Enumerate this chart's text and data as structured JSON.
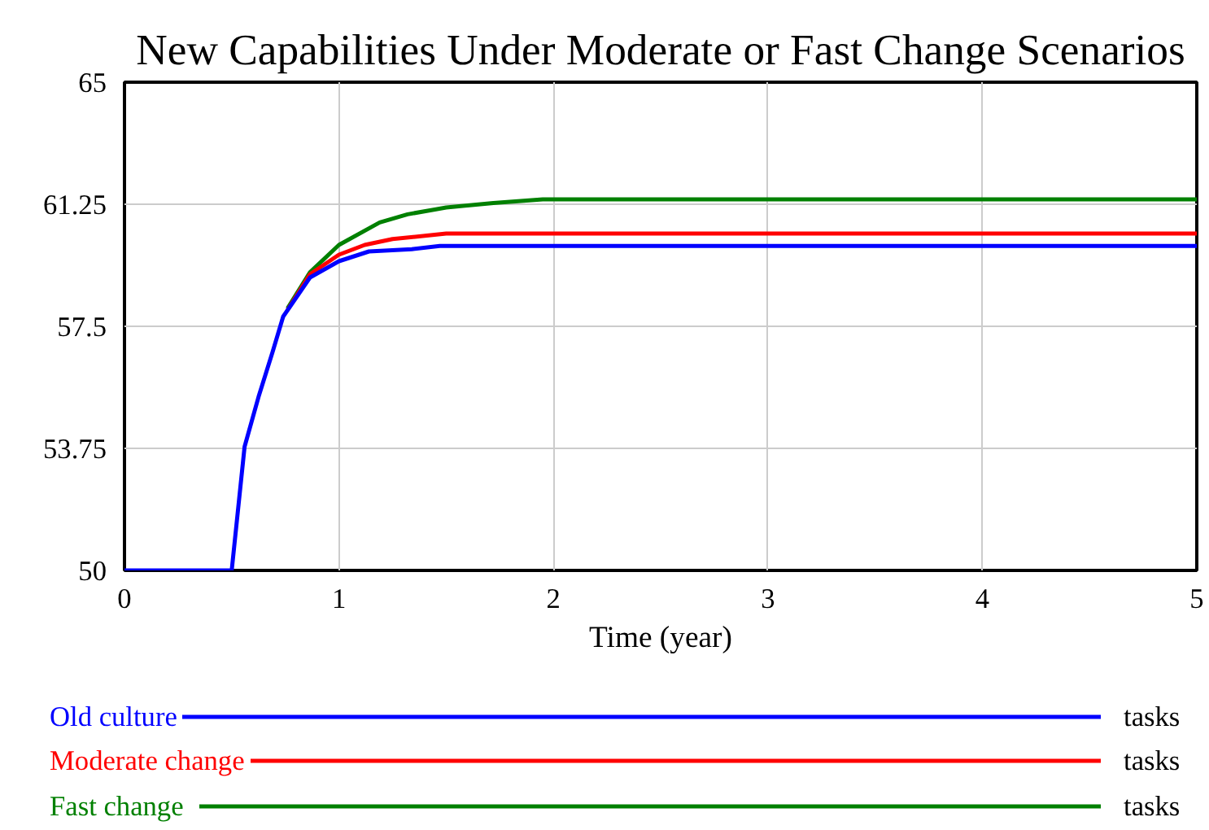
{
  "chart_data": {
    "type": "line",
    "title": "New Capabilities Under Moderate or Fast Change Scenarios",
    "xlabel": "Time (year)",
    "xlim": [
      0,
      5
    ],
    "xticks": [
      0,
      1,
      2,
      3,
      4,
      5
    ],
    "ylim": [
      50,
      65
    ],
    "yticks": [
      50,
      53.75,
      57.5,
      61.25,
      65
    ],
    "grid": true,
    "legend": "bottom",
    "annotations": [
      "tasks",
      "tasks",
      "tasks"
    ],
    "series": [
      {
        "name": "Old culture",
        "color": "#0000ff",
        "x": [
          0,
          0.5,
          0.56,
          0.625,
          0.69,
          0.74,
          0.865,
          1.0,
          1.14,
          1.34,
          1.47,
          5
        ],
        "values": [
          50,
          50,
          53.8,
          55.33,
          56.7,
          57.8,
          59.0,
          59.5,
          59.8,
          59.87,
          59.97,
          59.97
        ]
      },
      {
        "name": "Moderate change",
        "color": "#ff0000",
        "x": [
          0.76,
          0.865,
          1.0,
          1.12,
          1.25,
          1.5,
          5
        ],
        "values": [
          58.0,
          59.1,
          59.7,
          60.0,
          60.18,
          60.35,
          60.35
        ]
      },
      {
        "name": "Fast change",
        "color": "#008000",
        "x": [
          0.76,
          0.865,
          1.0,
          1.19,
          1.32,
          1.5,
          1.72,
          1.95,
          5
        ],
        "values": [
          58.05,
          59.16,
          60.0,
          60.69,
          60.94,
          61.15,
          61.29,
          61.4,
          61.4
        ]
      }
    ]
  }
}
